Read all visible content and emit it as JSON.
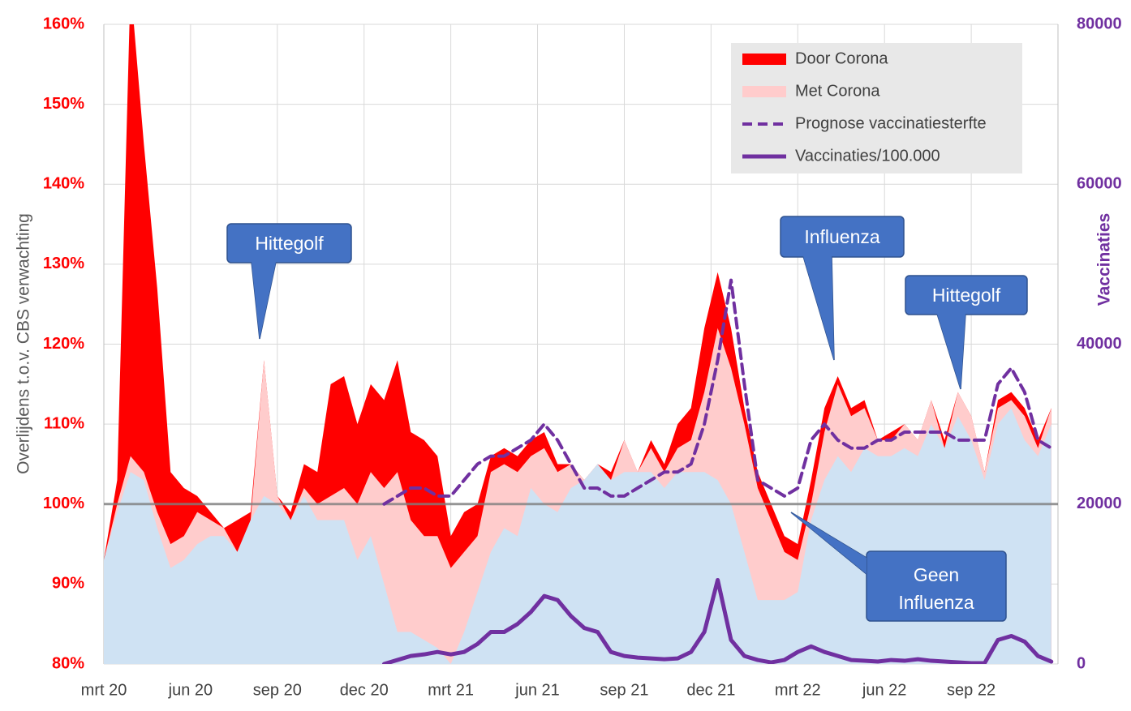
{
  "chart_data": {
    "type": "area",
    "ylabel": "Overlijdens t.o.v. CBS verwachting",
    "y2label": "Vaccinaties",
    "xlim": [
      0,
      143
    ],
    "xticks": [
      {
        "value": 0,
        "label": "mrt 20"
      },
      {
        "value": 13,
        "label": "jun 20"
      },
      {
        "value": 26,
        "label": "sep 20"
      },
      {
        "value": 39,
        "label": "dec 20"
      },
      {
        "value": 52,
        "label": "mrt 21"
      },
      {
        "value": 65,
        "label": "jun 21"
      },
      {
        "value": 78,
        "label": "sep 21"
      },
      {
        "value": 91,
        "label": "dec 21"
      },
      {
        "value": 104,
        "label": "mrt 22"
      },
      {
        "value": 117,
        "label": "jun 22"
      },
      {
        "value": 130,
        "label": "sep 22"
      }
    ],
    "ylim": [
      80,
      160
    ],
    "yticks": [
      {
        "value": 80,
        "label": "80%"
      },
      {
        "value": 90,
        "label": "90%"
      },
      {
        "value": 100,
        "label": "100%"
      },
      {
        "value": 110,
        "label": "110%"
      },
      {
        "value": 120,
        "label": "120%"
      },
      {
        "value": 130,
        "label": "130%"
      },
      {
        "value": 140,
        "label": "140%"
      },
      {
        "value": 150,
        "label": "150%"
      },
      {
        "value": 160,
        "label": "160%"
      }
    ],
    "y2lim": [
      0,
      80000
    ],
    "y2ticks": [
      0,
      20000,
      40000,
      60000,
      80000
    ],
    "grid": true,
    "hline": 100,
    "legend": "top-right",
    "x": [
      0,
      2,
      4,
      6,
      8,
      10,
      12,
      14,
      16,
      18,
      20,
      22,
      24,
      26,
      28,
      30,
      32,
      34,
      36,
      38,
      40,
      42,
      44,
      46,
      48,
      50,
      52,
      54,
      56,
      58,
      60,
      62,
      64,
      66,
      68,
      70,
      72,
      74,
      76,
      78,
      80,
      82,
      84,
      86,
      88,
      90,
      92,
      94,
      96,
      98,
      100,
      102,
      104,
      106,
      108,
      110,
      112,
      114,
      116,
      118,
      120,
      122,
      124,
      126,
      128,
      130,
      132,
      134,
      136,
      138,
      140,
      142
    ],
    "series": [
      {
        "name": "Door Corona",
        "style": "area",
        "color": "#ff0000",
        "values": [
          93,
          103,
          165,
          145,
          127,
          104,
          102,
          101,
          99,
          97,
          98,
          99,
          118,
          101,
          99,
          105,
          104,
          115,
          116,
          110,
          115,
          113,
          118,
          109,
          108,
          106,
          96,
          99,
          100,
          106,
          107,
          106,
          108,
          109,
          105,
          105,
          103,
          105,
          104,
          108,
          104,
          108,
          105,
          110,
          112,
          122,
          129,
          122,
          112,
          104,
          100,
          96,
          95,
          103,
          112,
          116,
          112,
          113,
          108,
          109,
          110,
          108,
          113,
          108,
          114,
          111,
          104,
          113,
          114,
          112,
          108,
          112
        ]
      },
      {
        "name": "Met Corona",
        "style": "area",
        "color": "#ffcccc",
        "values": [
          93,
          100,
          106,
          104,
          99,
          95,
          96,
          99,
          98,
          97,
          94,
          98,
          118,
          101,
          98,
          102,
          100,
          101,
          102,
          100,
          104,
          102,
          104,
          98,
          96,
          96,
          92,
          94,
          96,
          104,
          105,
          104,
          106,
          107,
          104,
          105,
          103,
          105,
          103,
          108,
          104,
          107,
          104,
          107,
          108,
          114,
          122,
          117,
          110,
          102,
          98,
          94,
          93,
          100,
          109,
          115,
          111,
          112,
          108,
          108,
          110,
          108,
          113,
          107,
          114,
          111,
          104,
          112,
          113,
          111,
          107,
          112
        ]
      },
      {
        "style": "area",
        "color": "#cfe2f3",
        "values": [
          93,
          99,
          104,
          103,
          97,
          92,
          93,
          95,
          96,
          96,
          94,
          98,
          101,
          100,
          98,
          101,
          98,
          98,
          98,
          93,
          96,
          90,
          84,
          84,
          83,
          82,
          80,
          84,
          89,
          94,
          97,
          96,
          102,
          100,
          99,
          102,
          103,
          105,
          103,
          104,
          104,
          104,
          102,
          104,
          104,
          104,
          103,
          100,
          94,
          88,
          88,
          88,
          89,
          98,
          103,
          106,
          104,
          107,
          106,
          106,
          107,
          106,
          110,
          107,
          111,
          108,
          103,
          110,
          112,
          108,
          106,
          110
        ]
      },
      {
        "name": "Prognose vaccinatiesterfte",
        "style": "dashed",
        "color": "#7030a0",
        "values": [
          null,
          null,
          null,
          null,
          null,
          null,
          null,
          null,
          null,
          null,
          null,
          null,
          null,
          null,
          null,
          null,
          null,
          null,
          null,
          null,
          null,
          100,
          101,
          102,
          102,
          101,
          101,
          103,
          105,
          106,
          106,
          107,
          108,
          110,
          108,
          105,
          102,
          102,
          101,
          101,
          102,
          103,
          104,
          104,
          105,
          110,
          118,
          128,
          115,
          103,
          102,
          101,
          102,
          108,
          110,
          108,
          107,
          107,
          108,
          108,
          109,
          109,
          109,
          109,
          108,
          108,
          108,
          115,
          117,
          114,
          108,
          107
        ]
      },
      {
        "name": "Vaccinaties/100.000",
        "style": "solid",
        "color": "#7030a0",
        "axis": "y2",
        "values": [
          null,
          null,
          null,
          null,
          null,
          null,
          null,
          null,
          null,
          null,
          null,
          null,
          null,
          null,
          null,
          null,
          null,
          null,
          null,
          null,
          null,
          0,
          500,
          1000,
          1200,
          1500,
          1200,
          1500,
          2500,
          4000,
          4000,
          5000,
          6500,
          8500,
          8000,
          6000,
          4500,
          4000,
          1500,
          1000,
          800,
          700,
          600,
          700,
          1500,
          4000,
          10500,
          3000,
          1000,
          500,
          200,
          500,
          1500,
          2200,
          1500,
          1000,
          500,
          400,
          300,
          500,
          400,
          600,
          400,
          300,
          200,
          100,
          100,
          3000,
          3500,
          2800,
          1000,
          300
        ]
      }
    ],
    "annotations": [
      {
        "text": "Hittegolf",
        "x": 24,
        "y": 120
      },
      {
        "text": "Influenza",
        "x": 110,
        "y": 117
      },
      {
        "text": "Hittegolf",
        "x": 128,
        "y": 114
      },
      {
        "text": "Geen",
        "text2": "Influenza",
        "x": 105,
        "y": 99
      }
    ]
  }
}
